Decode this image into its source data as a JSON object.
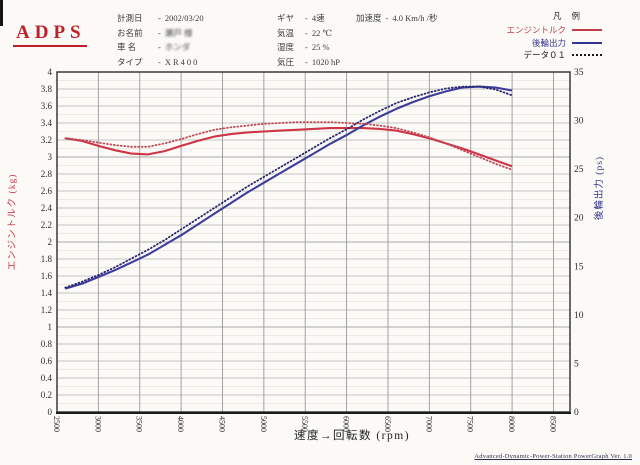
{
  "header": {
    "logo": "ADPS",
    "columns": [
      {
        "fields": [
          {
            "label": "計測日",
            "sep": "-",
            "value": "2002/03/20"
          },
          {
            "label": "お名前",
            "sep": "-",
            "value": "瀬戸 様",
            "obscured": true
          },
          {
            "label": "車 名",
            "sep": "-",
            "value": "ホンダ",
            "obscured": true
          },
          {
            "label": "タイプ",
            "sep": "-",
            "value": "XR400",
            "spaced": true
          }
        ]
      },
      {
        "fields": [
          {
            "label": "ギヤ",
            "sep": "-",
            "value": "4速"
          },
          {
            "label": "気温",
            "sep": "-",
            "value": "22 ℃"
          },
          {
            "label": "湿度",
            "sep": "-",
            "value": "25 %"
          },
          {
            "label": "気圧",
            "sep": "-",
            "value": "1020 hP"
          }
        ]
      },
      {
        "fields": [
          {
            "label": "加速度",
            "sep": "-",
            "value": "4.0 Km/h /秒"
          }
        ]
      }
    ]
  },
  "legend": {
    "title": "凡 例",
    "items": [
      {
        "label": "エンジントルク",
        "style": "solid",
        "color": "#c53a4a"
      },
      {
        "label": "後輪出力",
        "style": "solid",
        "color": "#35358f"
      },
      {
        "label": "データ０１",
        "style": "dotted",
        "color": "#1a1a1a"
      }
    ]
  },
  "footer": {
    "text": "Advanced-Dynamic-Power-Station PowerGraph Ver. 1.0"
  },
  "chart_data": {
    "type": "line",
    "x_axis": {
      "title": "速度→回転数 (rpm)",
      "min": 2500,
      "max": 8700,
      "ticks": [
        2500,
        3000,
        3500,
        4000,
        4500,
        5000,
        5500,
        6000,
        6500,
        7000,
        7500,
        8000,
        8500
      ]
    },
    "y_left": {
      "title": "エンジントルク (kg)",
      "color": "#c53a4a",
      "min": 0,
      "max": 4,
      "ticks": [
        "0",
        "0.2",
        "0.4",
        "0.6",
        "0.8",
        "1",
        "1.2",
        "1.4",
        "1.6",
        "1.8",
        "2",
        "2.2",
        "2.4",
        "2.6",
        "2.8",
        "3",
        "3.2",
        "3.4",
        "3.6",
        "3.8",
        "4"
      ]
    },
    "y_right": {
      "title": "後輪出力 (ps)",
      "color": "#35358f",
      "min": 0,
      "max": 35,
      "ticks": [
        "0",
        "5",
        "10",
        "15",
        "20",
        "25",
        "30",
        "35"
      ]
    },
    "grid": true,
    "x": [
      2600,
      2800,
      3000,
      3200,
      3400,
      3600,
      3800,
      4000,
      4200,
      4400,
      4600,
      4800,
      5000,
      5200,
      5400,
      5600,
      5800,
      6000,
      6200,
      6400,
      6600,
      6800,
      7000,
      7200,
      7400,
      7600,
      7800,
      8000
    ],
    "series": [
      {
        "key": "engine-torque",
        "name": "エンジントルク",
        "axis": "left",
        "style": "solid",
        "color": "#cf3447",
        "values": [
          3.22,
          3.19,
          3.13,
          3.08,
          3.04,
          3.03,
          3.07,
          3.13,
          3.19,
          3.24,
          3.27,
          3.29,
          3.3,
          3.31,
          3.32,
          3.33,
          3.34,
          3.34,
          3.34,
          3.33,
          3.31,
          3.27,
          3.22,
          3.16,
          3.1,
          3.03,
          2.96,
          2.89
        ]
      },
      {
        "key": "rear-wheel-power",
        "name": "後輪出力",
        "axis": "right",
        "style": "solid",
        "color": "#3c3c9c",
        "values": [
          12.7,
          13.2,
          13.9,
          14.6,
          15.4,
          16.2,
          17.2,
          18.2,
          19.3,
          20.4,
          21.5,
          22.6,
          23.6,
          24.6,
          25.6,
          26.6,
          27.6,
          28.5,
          29.5,
          30.4,
          31.2,
          31.9,
          32.5,
          33.0,
          33.4,
          33.5,
          33.4,
          33.1
        ]
      },
      {
        "key": "data01-torque",
        "name": "データ01 トルク",
        "axis": "left",
        "style": "dotted",
        "color": "#c04a58",
        "values": [
          3.22,
          3.2,
          3.17,
          3.14,
          3.12,
          3.12,
          3.16,
          3.21,
          3.27,
          3.32,
          3.35,
          3.37,
          3.39,
          3.4,
          3.41,
          3.41,
          3.41,
          3.4,
          3.39,
          3.37,
          3.34,
          3.29,
          3.23,
          3.16,
          3.08,
          3.0,
          2.92,
          2.85
        ]
      },
      {
        "key": "data01-power",
        "name": "データ01 出力",
        "axis": "right",
        "style": "dotted",
        "color": "#26266e",
        "values": [
          12.8,
          13.4,
          14.1,
          14.9,
          15.8,
          16.7,
          17.7,
          18.8,
          19.9,
          21.0,
          22.1,
          23.2,
          24.2,
          25.2,
          26.2,
          27.2,
          28.2,
          29.1,
          30.1,
          31.0,
          31.8,
          32.4,
          32.9,
          33.3,
          33.5,
          33.5,
          33.2,
          32.6
        ]
      }
    ]
  }
}
